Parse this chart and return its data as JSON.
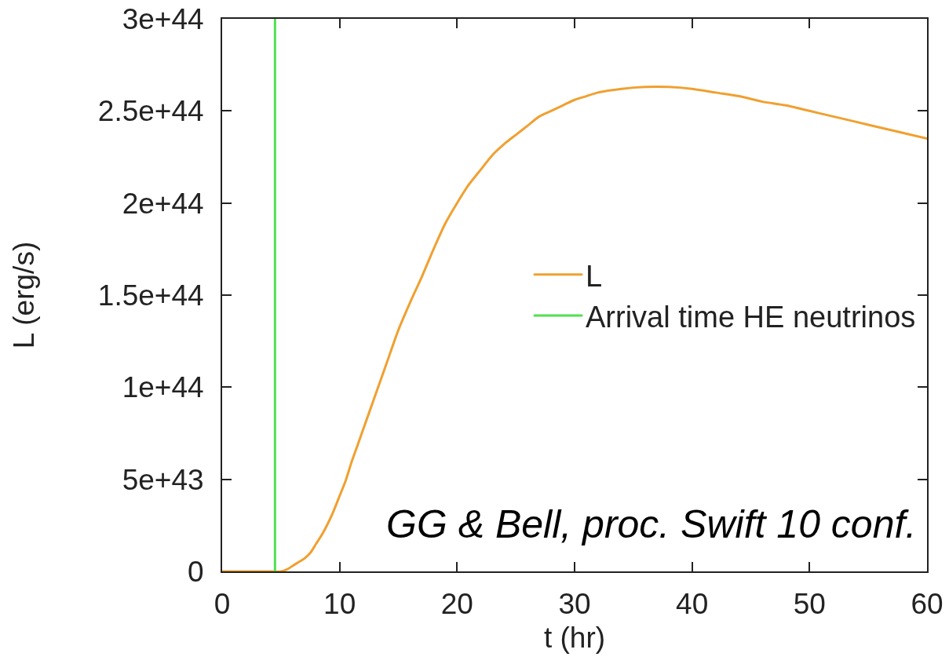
{
  "chart_data": {
    "type": "line",
    "xlabel": "t (hr)",
    "ylabel": "L (erg/s)",
    "xlim": [
      0,
      60
    ],
    "xticks": [
      0,
      10,
      20,
      30,
      40,
      50,
      60
    ],
    "ylim": [
      0,
      3e+44
    ],
    "yticks": [
      0,
      {
        "value": 5e+43,
        "label": "5e+43"
      },
      {
        "value": 1e+44,
        "label": "1e+44"
      },
      {
        "value": 1.5e+44,
        "label": "1.5e+44"
      },
      {
        "value": 2e+44,
        "label": "2e+44"
      },
      {
        "value": 2.5e+44,
        "label": "2.5e+44"
      },
      {
        "value": 3e+44,
        "label": "3e+44"
      }
    ],
    "legend": "right",
    "series": [
      {
        "name": "L",
        "color": "#f0a030",
        "x": [
          0,
          2,
          4,
          5,
          5.5,
          6,
          6.5,
          7,
          7.5,
          8,
          8.5,
          9,
          9.5,
          10,
          10.5,
          11,
          11.5,
          12,
          13,
          14,
          15,
          16,
          17,
          18,
          19,
          20,
          21,
          22,
          23,
          24,
          25,
          26,
          27,
          28,
          29,
          30,
          31,
          32,
          34,
          36,
          38,
          40,
          42,
          44,
          46,
          48,
          50,
          52,
          54,
          56,
          58,
          60
        ],
        "values": [
          0,
          0,
          0,
          0,
          1e+42,
          3e+42,
          5e+42,
          7e+42,
          1e+43,
          1.5e+43,
          2e+43,
          2.6e+43,
          3.3e+43,
          4.1e+43,
          4.9e+43,
          5.9e+43,
          6.8e+43,
          7.7e+43,
          9.5e+43,
          1.13e+44,
          1.31e+44,
          1.46e+44,
          1.6e+44,
          1.75e+44,
          1.89e+44,
          2e+44,
          2.1e+44,
          2.18e+44,
          2.26e+44,
          2.32e+44,
          2.37e+44,
          2.42e+44,
          2.47e+44,
          2.5e+44,
          2.53e+44,
          2.56e+44,
          2.58e+44,
          2.6e+44,
          2.62e+44,
          2.63e+44,
          2.63e+44,
          2.62e+44,
          2.6e+44,
          2.58e+44,
          2.55e+44,
          2.53e+44,
          2.5e+44,
          2.47e+44,
          2.44e+44,
          2.41e+44,
          2.38e+44,
          2.35e+44
        ]
      },
      {
        "name": "Arrival time HE neutrinos",
        "color": "#50e050",
        "x": [
          4.5,
          4.5
        ],
        "values": [
          0,
          3e+44
        ]
      }
    ],
    "annotations": [
      "GG & Bell, proc. Swift 10 conf."
    ]
  }
}
